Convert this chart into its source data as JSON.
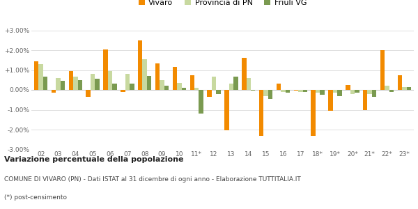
{
  "categories": [
    "02",
    "03",
    "04",
    "05",
    "06",
    "07",
    "08",
    "09",
    "10",
    "11*",
    "12",
    "13",
    "14",
    "15",
    "16",
    "17",
    "18*",
    "19*",
    "20*",
    "21*",
    "22*",
    "23*"
  ],
  "vivaro": [
    1.45,
    -0.15,
    0.95,
    -0.35,
    2.05,
    -0.1,
    2.5,
    1.35,
    1.15,
    0.75,
    -0.35,
    -2.05,
    1.6,
    -2.3,
    0.3,
    -0.05,
    -2.3,
    -1.05,
    0.25,
    -1.0,
    2.0,
    0.75
  ],
  "provincia": [
    1.3,
    0.6,
    0.65,
    0.8,
    0.95,
    0.8,
    1.55,
    0.5,
    0.35,
    0.1,
    0.65,
    0.3,
    0.6,
    -0.3,
    -0.1,
    -0.1,
    -0.15,
    -0.15,
    -0.2,
    -0.2,
    0.2,
    0.15
  ],
  "friuli": [
    0.65,
    0.45,
    0.5,
    0.55,
    0.3,
    0.3,
    0.7,
    0.2,
    0.1,
    -1.2,
    -0.2,
    0.65,
    -0.05,
    -0.45,
    -0.15,
    -0.1,
    -0.25,
    -0.3,
    -0.15,
    -0.35,
    -0.1,
    0.15
  ],
  "color_vivaro": "#f28a00",
  "color_provincia": "#c8d9a0",
  "color_friuli": "#7a9a50",
  "title": "Variazione percentuale della popolazione",
  "subtitle": "COMUNE DI VIVARO (PN) - Dati ISTAT al 31 dicembre di ogni anno - Elaborazione TUTTITALIA.IT",
  "footnote": "(*) post-censimento",
  "ylim": [
    -3.0,
    3.0
  ],
  "yticks": [
    -3.0,
    -2.0,
    -1.0,
    0.0,
    1.0,
    2.0,
    3.0
  ],
  "ytick_labels": [
    "-3.00%",
    "-2.00%",
    "-1.00%",
    "0.00%",
    "+1.00%",
    "+2.00%",
    "+3.00%"
  ],
  "background_color": "#ffffff",
  "grid_color": "#e0e0e0"
}
